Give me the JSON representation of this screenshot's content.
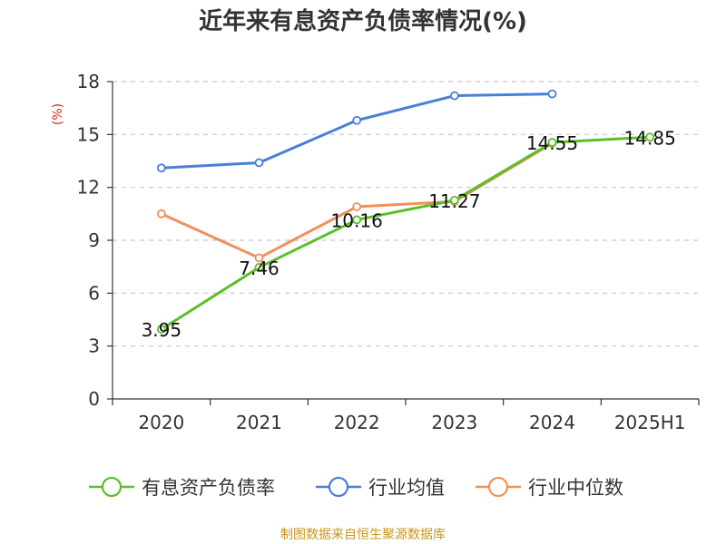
{
  "chart_data": {
    "type": "line",
    "title": "近年来有息资产负债率情况(%)",
    "ylabel": "(%)",
    "xlabel": "",
    "categories": [
      "2020",
      "2021",
      "2022",
      "2023",
      "2024",
      "2025H1"
    ],
    "ylim": [
      0,
      18
    ],
    "yticks": [
      "0",
      "3",
      "6",
      "9",
      "12",
      "15",
      "18"
    ],
    "grid": true,
    "legend_position": "bottom",
    "series": [
      {
        "name": "有息资产负债率",
        "color": "#5cbf2a",
        "values": [
          3.95,
          7.46,
          10.16,
          11.27,
          14.55,
          14.85
        ],
        "labels": [
          "3.95",
          "7.46",
          "10.16",
          "11.27",
          "14.55",
          "14.85"
        ]
      },
      {
        "name": "行业均值",
        "color": "#4a7fd8",
        "values": [
          13.1,
          13.4,
          15.8,
          17.2,
          17.3,
          null
        ]
      },
      {
        "name": "行业中位数",
        "color": "#f0915a",
        "values": [
          10.5,
          8.0,
          10.9,
          11.2,
          14.5,
          null
        ]
      }
    ]
  },
  "source_text": "制图数据来自恒生聚源数据库"
}
